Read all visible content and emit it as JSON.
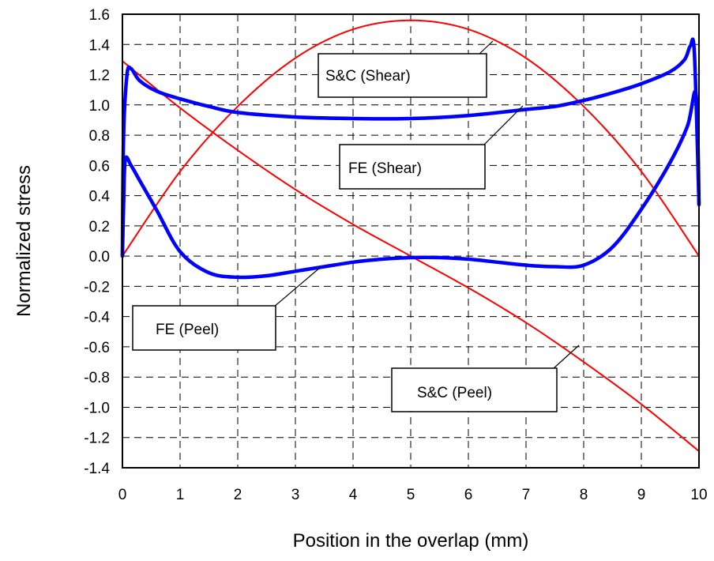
{
  "chart_data": {
    "type": "line",
    "title": "",
    "xlabel": "Position in the overlap (mm)",
    "ylabel": "Normalized stress",
    "xlim": [
      0,
      10
    ],
    "ylim": [
      -1.4,
      1.6
    ],
    "x_ticks": [
      "0",
      "1",
      "2",
      "3",
      "4",
      "5",
      "6",
      "7",
      "8",
      "9",
      "10"
    ],
    "y_ticks": [
      "1.6",
      "1.4",
      "1.2",
      "1.0",
      "0.8",
      "0.6",
      "0.4",
      "0.2",
      "0.0",
      "-0.2",
      "-0.4",
      "-0.6",
      "-0.8",
      "-1.0",
      "-1.2",
      "-1.4"
    ],
    "grid": true,
    "series": [
      {
        "name": "S&C (Shear)",
        "color": "#ff0000",
        "x": [
          0,
          1,
          2,
          3,
          4,
          5,
          6,
          7,
          8,
          9,
          10
        ],
        "y": [
          0.0,
          0.56,
          0.99,
          1.31,
          1.5,
          1.56,
          1.5,
          1.31,
          0.99,
          0.56,
          0.0
        ]
      },
      {
        "name": "S&C (Peel)",
        "color": "#ff0000",
        "x": [
          0,
          1,
          2,
          3,
          4,
          5,
          6,
          7,
          8,
          9,
          10
        ],
        "y": [
          1.29,
          0.98,
          0.7,
          0.44,
          0.21,
          0.0,
          -0.21,
          -0.44,
          -0.7,
          -0.98,
          -1.29
        ]
      },
      {
        "name": "FE (Shear)",
        "color": "#0000ff",
        "x": [
          0,
          0.02,
          0.08,
          0.15,
          0.3,
          0.6,
          1,
          1.5,
          2,
          3,
          4,
          5,
          6,
          7,
          7.5,
          8,
          8.5,
          9,
          9.5,
          9.75,
          9.85,
          9.92,
          10
        ],
        "y": [
          0.0,
          0.8,
          1.2,
          1.24,
          1.16,
          1.09,
          1.04,
          0.99,
          0.95,
          0.92,
          0.91,
          0.91,
          0.93,
          0.97,
          0.99,
          1.03,
          1.08,
          1.14,
          1.22,
          1.3,
          1.39,
          1.34,
          0.35
        ]
      },
      {
        "name": "FE (Peel)",
        "color": "#0000ff",
        "x": [
          0,
          0.02,
          0.05,
          0.15,
          0.3,
          0.6,
          1,
          1.5,
          2,
          2.5,
          3,
          3.5,
          4,
          4.5,
          5,
          5.5,
          6,
          6.5,
          7,
          7.5,
          8,
          8.5,
          9,
          9.5,
          9.8,
          9.95,
          10
        ],
        "y": [
          0.0,
          0.35,
          0.64,
          0.6,
          0.5,
          0.3,
          0.03,
          -0.11,
          -0.14,
          -0.13,
          -0.1,
          -0.07,
          -0.04,
          -0.02,
          -0.01,
          -0.01,
          -0.02,
          -0.04,
          -0.06,
          -0.07,
          -0.06,
          0.06,
          0.31,
          0.62,
          0.86,
          1.07,
          0.34
        ]
      }
    ],
    "annotations": [
      {
        "text": "S&C  (Shear)",
        "series": "S&C (Shear)"
      },
      {
        "text": "FE  (Shear)",
        "series": "FE (Shear)"
      },
      {
        "text": "FE  (Peel)",
        "series": "FE (Peel)"
      },
      {
        "text": "S&C  (Peel)",
        "series": "S&C (Peel)"
      }
    ]
  }
}
